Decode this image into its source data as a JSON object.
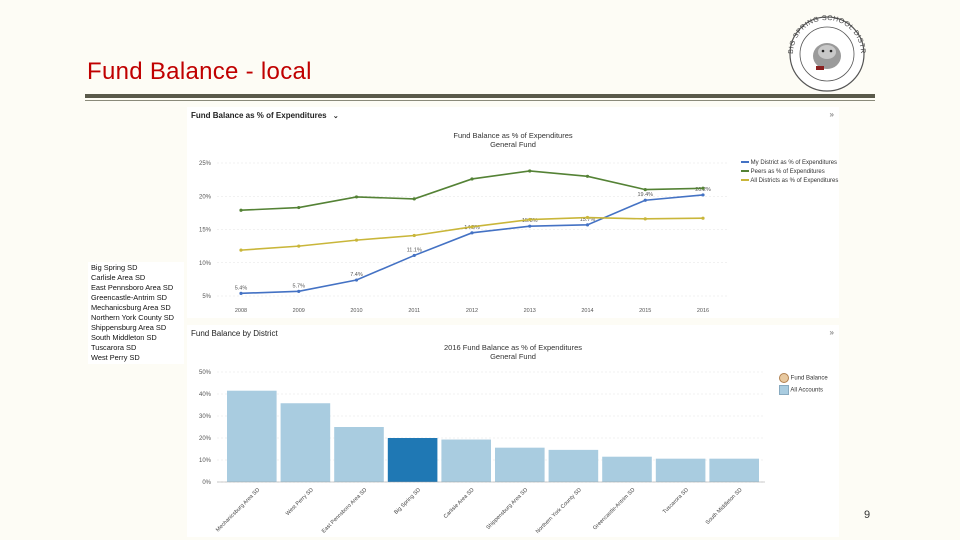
{
  "slide": {
    "title": "Fund Balance - local",
    "page_number": "9",
    "logo_text": "BIG SPRING SCHOOL DISTRICT"
  },
  "line_panel": {
    "header": "Fund Balance as % of Expenditures",
    "dropdown_icon": "chevron-down-icon",
    "menu_icon": "double-chevron-icon",
    "menu_glyph": "»"
  },
  "bar_panel": {
    "header": "Fund Balance by District",
    "menu_icon": "double-chevron-icon",
    "menu_glyph": "»"
  },
  "districts": [
    "Big Spring SD",
    "Carlisle Area SD",
    "East Pennsboro Area SD",
    "Greencastle-Antrim SD",
    "Mechanicsburg Area SD",
    "Northern York County SD",
    "Shippensburg Area SD",
    "South Middleton SD",
    "Tuscarora SD",
    "West Perry SD"
  ],
  "chart_data": [
    {
      "type": "line",
      "title": "Fund Balance as % of Expenditures",
      "subtitle": "General Fund",
      "categories": [
        "2008",
        "2009",
        "2010",
        "2011",
        "2012",
        "2013",
        "2014",
        "2015",
        "2016"
      ],
      "ylim": [
        5,
        25
      ],
      "yticks": [
        "5%",
        "10%",
        "15%",
        "20%",
        "25%"
      ],
      "series": [
        {
          "name": "My District as % of Expenditures",
          "color": "#4472c4",
          "values": [
            5.4,
            5.7,
            7.4,
            11.1,
            14.5,
            15.5,
            15.7,
            19.4,
            20.2
          ],
          "labels": [
            "5.4%",
            "5.7%",
            "7.4%",
            "11.1%",
            "14.5%",
            "15.5%",
            "15.7%",
            "19.4%",
            "20.2%"
          ]
        },
        {
          "name": "Peers as % of Expenditures",
          "color": "#548235",
          "values": [
            17.9,
            18.3,
            19.9,
            19.6,
            22.6,
            23.8,
            23.0,
            21.0,
            21.2
          ],
          "labels": []
        },
        {
          "name": "All Districts as % of Expenditures",
          "color": "#c9b63a",
          "values": [
            11.9,
            12.5,
            13.4,
            14.1,
            15.4,
            16.5,
            16.8,
            16.6,
            16.7
          ],
          "labels": []
        }
      ],
      "legend_position": "top-right"
    },
    {
      "type": "bar",
      "title": "2016 Fund Balance as % of Expenditures",
      "subtitle": "General Fund",
      "categories": [
        "Mechanicsburg Area SD",
        "West Perry SD",
        "East Pennsboro Area SD",
        "Big Spring SD",
        "Carlisle Area SD",
        "Shippensburg Area SD",
        "Northern York County SD",
        "Greencastle-Antrim SD",
        "Tuscarora SD",
        "South Middleton SD"
      ],
      "values": [
        41.5,
        35.8,
        25,
        20,
        19.3,
        15.6,
        14.6,
        11.5,
        10.6,
        10.6
      ],
      "highlight_index": 3,
      "ylim": [
        0,
        50
      ],
      "yticks": [
        "0%",
        "10%",
        "20%",
        "30%",
        "40%",
        "50%"
      ],
      "colors": {
        "bar": "#a9cce0",
        "highlight": "#1f78b4"
      },
      "legend": [
        {
          "label": "Fund Balance",
          "icon": "fund-balance-icon"
        },
        {
          "label": "All Accounts",
          "color": "#a9cce0"
        }
      ],
      "legend_position": "right"
    }
  ]
}
